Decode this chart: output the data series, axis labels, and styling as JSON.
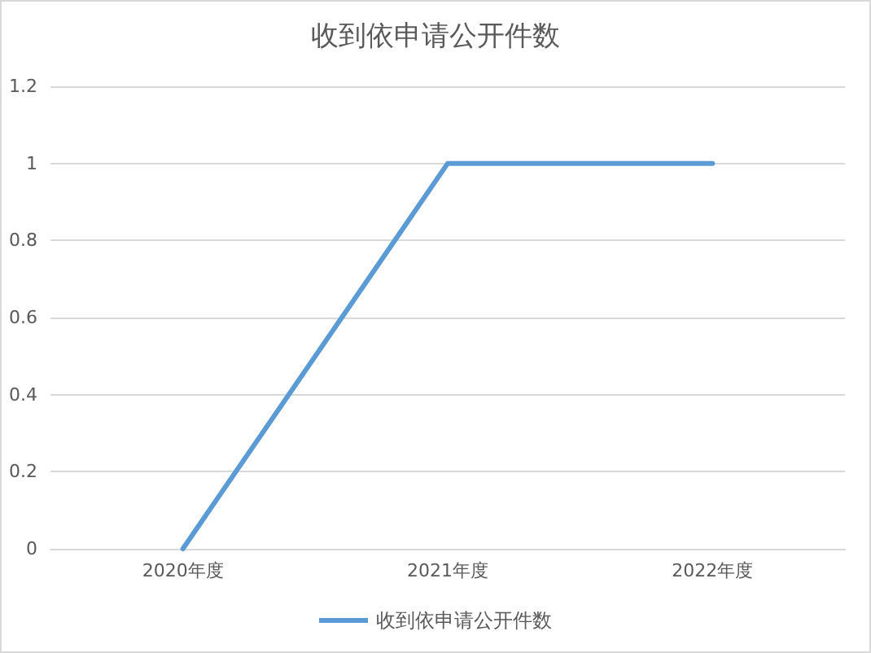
{
  "chart_data": {
    "type": "line",
    "title": "收到依申请公开件数",
    "categories": [
      "2020年度",
      "2021年度",
      "2022年度"
    ],
    "series": [
      {
        "name": "收到依申请公开件数",
        "color": "#5b9bd5",
        "values": [
          0,
          1,
          1
        ]
      }
    ],
    "ylim": [
      0,
      1.2
    ],
    "yticks": [
      0,
      0.2,
      0.4,
      0.6,
      0.8,
      1,
      1.2
    ],
    "grid": "y",
    "legend": "bottom",
    "marker": "none",
    "line_style": "solid"
  }
}
